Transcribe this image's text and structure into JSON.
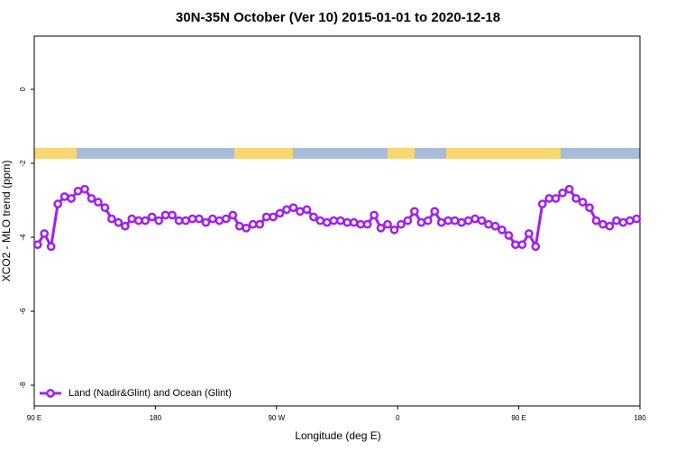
{
  "chart_data": {
    "type": "line",
    "title": "30N-35N October (Ver 10)   2015-01-01 to 2020-12-18",
    "xlabel": "Longitude (deg E)",
    "ylabel": "XCO2 - MLO trend (ppm)",
    "xlim": [
      90,
      540
    ],
    "xticks": [
      {
        "value": 90,
        "label": "90 E"
      },
      180,
      {
        "value": 270,
        "label": "90 W"
      },
      {
        "value": 360,
        "label": "0"
      },
      {
        "value": 450,
        "label": "90 E"
      },
      {
        "value": 540,
        "label": "180"
      }
    ],
    "ylim": [
      -8.56,
      1.44
    ],
    "yticks": [
      0,
      -2,
      -4,
      -6,
      -8
    ],
    "legend": "bottom-left",
    "x": [
      92.5,
      97.5,
      102.5,
      107.5,
      112.5,
      117.5,
      122.5,
      127.5,
      132.5,
      137.5,
      142.5,
      147.5,
      152.5,
      157.5,
      162.5,
      167.5,
      172.5,
      177.5,
      182.5,
      187.5,
      192.5,
      197.5,
      202.5,
      207.5,
      212.5,
      217.5,
      222.5,
      227.5,
      232.5,
      237.5,
      242.5,
      247.5,
      252.5,
      257.5,
      262.5,
      267.5,
      272.5,
      277.5,
      282.5,
      287.5,
      292.5,
      297.5,
      302.5,
      307.5,
      312.5,
      317.5,
      322.5,
      327.5,
      332.5,
      337.5,
      342.5,
      347.5,
      352.5,
      357.5,
      362.5,
      367.5,
      372.5,
      377.5,
      382.5,
      387.5,
      392.5,
      397.5,
      402.5,
      407.5,
      412.5,
      417.5,
      422.5,
      427.5,
      432.5,
      437.5,
      442.5,
      447.5,
      452.5,
      457.5,
      462.5,
      467.5,
      472.5,
      477.5,
      482.5,
      487.5,
      492.5,
      497.5,
      502.5,
      507.5,
      512.5,
      517.5,
      522.5,
      527.5,
      532.5,
      537.5
    ],
    "series": [
      {
        "name": "Land (Nadir&Glint) and Ocean (Glint)",
        "color": "#a020f0",
        "values": [
          -4.2,
          -3.9,
          -4.25,
          -3.1,
          -2.9,
          -2.95,
          -2.75,
          -2.7,
          -2.95,
          -3.05,
          -3.2,
          -3.5,
          -3.6,
          -3.7,
          -3.5,
          -3.55,
          -3.55,
          -3.45,
          -3.55,
          -3.4,
          -3.4,
          -3.55,
          -3.55,
          -3.5,
          -3.5,
          -3.6,
          -3.5,
          -3.55,
          -3.5,
          -3.4,
          -3.7,
          -3.75,
          -3.65,
          -3.65,
          -3.45,
          -3.45,
          -3.35,
          -3.25,
          -3.2,
          -3.3,
          -3.25,
          -3.45,
          -3.55,
          -3.6,
          -3.55,
          -3.55,
          -3.6,
          -3.6,
          -3.65,
          -3.65,
          -3.4,
          -3.75,
          -3.65,
          -3.8,
          -3.65,
          -3.55,
          -3.3,
          -3.6,
          -3.55,
          -3.3,
          -3.6,
          -3.55,
          -3.55,
          -3.6,
          -3.55,
          -3.5,
          -3.55,
          -3.65,
          -3.7,
          -3.8,
          -3.95,
          -4.2,
          -4.2,
          -3.9,
          -4.25,
          -3.1,
          -2.95,
          -2.95,
          -2.8,
          -2.7,
          -2.95,
          -3.05,
          -3.2,
          -3.55,
          -3.65,
          -3.7,
          -3.55,
          -3.6,
          -3.55,
          -3.5
        ]
      }
    ]
  }
}
